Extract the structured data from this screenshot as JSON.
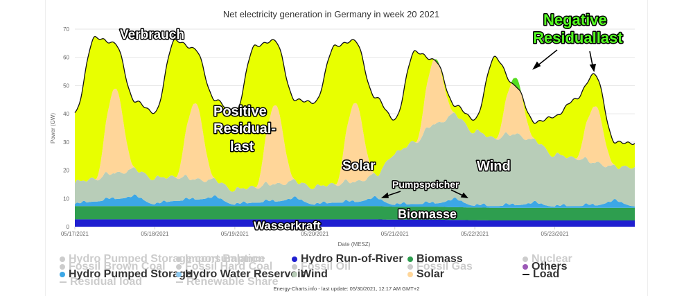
{
  "chart_data": {
    "type": "area",
    "title": "Net electricity generation in Germany in week 20 2021",
    "ylabel": "Power (GW)",
    "xlabel": "Date (MESZ)",
    "ylim": [
      0,
      70
    ],
    "y_ticks": [
      0,
      10,
      20,
      30,
      40,
      50,
      60,
      70
    ],
    "x_range_days": [
      0,
      7
    ],
    "x_tick_labels": [
      "05/17/2021",
      "05/18/2021",
      "05/19/2021",
      "05/20/2021",
      "05/21/2021",
      "05/22/2021",
      "05/23/2021"
    ],
    "grid": true,
    "x": [
      0,
      0.25,
      0.5,
      0.75,
      1,
      1.25,
      1.5,
      1.75,
      2,
      2.25,
      2.5,
      2.75,
      3,
      3.25,
      3.5,
      3.75,
      4,
      4.25,
      4.5,
      4.75,
      5,
      5.25,
      5.5,
      5.75,
      6,
      6.25,
      6.5,
      6.75,
      7
    ],
    "series": [
      {
        "name": "Hydro Run-of-River",
        "color": "#1f1fd0",
        "values": [
          2.6,
          2.6,
          2.6,
          2.6,
          2.6,
          2.6,
          2.6,
          2.6,
          2.6,
          2.6,
          2.6,
          2.6,
          2.6,
          2.6,
          2.6,
          2.6,
          2.5,
          2.5,
          2.5,
          2.4,
          2.3,
          2.2,
          2.2,
          2.2,
          2.2,
          2.2,
          2.2,
          2.2,
          2.2
        ]
      },
      {
        "name": "Biomass",
        "color": "#2e9e4f",
        "values": [
          4.7,
          4.7,
          4.7,
          4.7,
          4.7,
          4.7,
          4.7,
          4.7,
          4.7,
          4.7,
          4.7,
          4.7,
          4.7,
          4.7,
          4.7,
          4.7,
          4.6,
          4.6,
          4.6,
          4.5,
          4.5,
          4.5,
          4.5,
          4.5,
          4.5,
          4.5,
          4.5,
          4.5,
          4.5
        ]
      },
      {
        "name": "Hydro Pumped Storage",
        "color": "#3ca7e6",
        "values": [
          0.6,
          1.6,
          2.5,
          3.2,
          0.6,
          1.8,
          2.3,
          2.9,
          0.5,
          1.2,
          1.6,
          2.5,
          0.5,
          1.2,
          1.4,
          2.6,
          0.6,
          0.9,
          1.1,
          2.5,
          0.6,
          0.6,
          0.9,
          1.5,
          0.4,
          0.6,
          0.8,
          2.2,
          0.5
        ]
      },
      {
        "name": "Wind",
        "color": "#b8cdb8",
        "values": [
          7.5,
          8,
          9,
          9.5,
          9,
          8.5,
          7,
          6,
          5,
          5.5,
          6,
          6,
          6,
          6.5,
          7,
          8,
          18,
          22,
          28,
          30,
          26,
          24,
          25,
          22,
          18,
          17,
          15,
          12,
          14
        ]
      },
      {
        "name": "Solar",
        "color": "#ffd699",
        "values": [
          0,
          0,
          30,
          0,
          0,
          0,
          27,
          0,
          0,
          0,
          28,
          0,
          0,
          0,
          28,
          0,
          0,
          0,
          23,
          0,
          0,
          0,
          20,
          0,
          0,
          0,
          20,
          0,
          0
        ]
      },
      {
        "name": "Residual load",
        "color": "#e8ff00",
        "values": [
          25,
          50,
          20,
          30,
          27,
          46,
          17,
          30,
          26,
          45,
          15,
          30,
          28,
          46,
          12,
          32,
          14,
          30,
          2,
          8,
          16,
          32,
          1,
          10,
          18,
          20,
          -4,
          15,
          12
        ]
      },
      {
        "name": "Load",
        "color": "#111111",
        "values": [
          40.4,
          67,
          65,
          44.5,
          40.4,
          66,
          63,
          45,
          40,
          64,
          66,
          45,
          44,
          64,
          66,
          46,
          38,
          62,
          59,
          43,
          38,
          60,
          50,
          37,
          39,
          45,
          54,
          30,
          29.5
        ]
      }
    ],
    "annotations": [
      "Verbrauch",
      "Positive Residual-last",
      "Solar",
      "Wind",
      "Pumpspeicher",
      "Biomasse",
      "Wasserkraft",
      "Negative Residuallast"
    ]
  },
  "annotation_labels": {
    "verbrauch": "Verbrauch",
    "pos1": "Positive",
    "pos2": "Residual-",
    "pos3": "last",
    "solar": "Solar",
    "wind": "Wind",
    "pumpspeicher": "Pumpspeicher",
    "biomasse": "Biomasse",
    "wasserkraft": "Wasserkraft",
    "neg1": "Negative",
    "neg2": "Residuallast"
  },
  "legend": {
    "col1": [
      "Hydro Pumped Storage consumption",
      "Fossil Brown Coal",
      "Hydro Pumped Storage",
      "Residual load"
    ],
    "col2": [
      "Import Balance",
      "Fossil Hard Coal",
      "Hydro Water Reservoir",
      "Renewable Share"
    ],
    "col3": [
      "Hydro Run-of-River",
      "Fossil Oil",
      "Wind"
    ],
    "col4": [
      "Biomass",
      "Fossil Gas",
      "Solar"
    ],
    "col5": [
      "Nuclear",
      "Others",
      "Load"
    ]
  },
  "colors": {
    "run_of_river": "#1f1fd0",
    "biomass": "#2e9e4f",
    "pumped_storage": "#3ca7e6",
    "water_reservoir": "#8ec9f0",
    "wind": "#b8cdb8",
    "solar": "#ffd699",
    "residual": "#e8ff00",
    "others": "#9b59b6",
    "load": "#111111",
    "disabled": "#cccccc"
  },
  "credit": "Energy-Charts.info - last update: 05/30/2021, 12:17 AM GMT+2"
}
